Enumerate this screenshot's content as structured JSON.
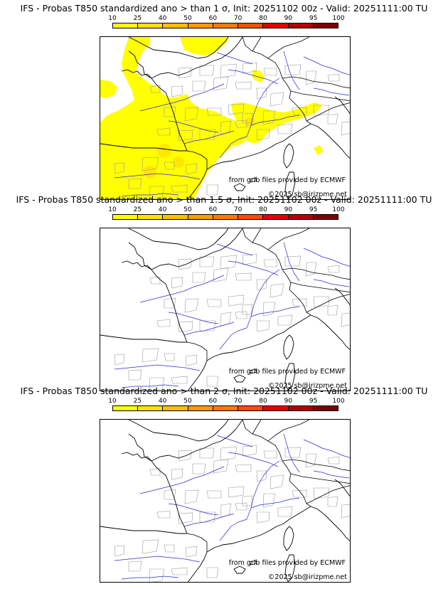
{
  "legend": {
    "ticks": [
      "10",
      "25",
      "40",
      "50",
      "60",
      "70",
      "80",
      "90",
      "95",
      "100"
    ],
    "colors": [
      "#ffff00",
      "#ffe100",
      "#ffbe00",
      "#ff9a00",
      "#ff7a00",
      "#ff4d00",
      "#e60000",
      "#b30000",
      "#800000"
    ]
  },
  "colors": {
    "coast": "#000000",
    "borders": "#000000",
    "admin": "#999999",
    "rivers": "#2a2ad8",
    "anomaly_fill": "#ffff00"
  },
  "panels": [
    {
      "title": "IFS - Probas T850  standardized ano > than 1 σ, Init: 20251102 00z - Valid: 20251111:00 TU",
      "credit_source": "from grib files provided by ECMWF",
      "credit_copyright": "©2025 sb@irizpme.net",
      "shows_anomaly_area": true
    },
    {
      "title": "IFS - Probas T850  standardized ano > than 1.5 σ, Init: 20251102 00z - Valid: 20251111:00 TU",
      "credit_source": "from grib files provided by ECMWF",
      "credit_copyright": "©2025 sb@irizpme.net",
      "shows_anomaly_area": false
    },
    {
      "title": "IFS - Probas T850  standardized ano > than 2 σ, Init: 20251102 00z - Valid: 20251111:00 TU",
      "credit_source": "from grib files provided by ECMWF",
      "credit_copyright": "©2025 sb@irizpme.net",
      "shows_anomaly_area": false
    }
  ]
}
